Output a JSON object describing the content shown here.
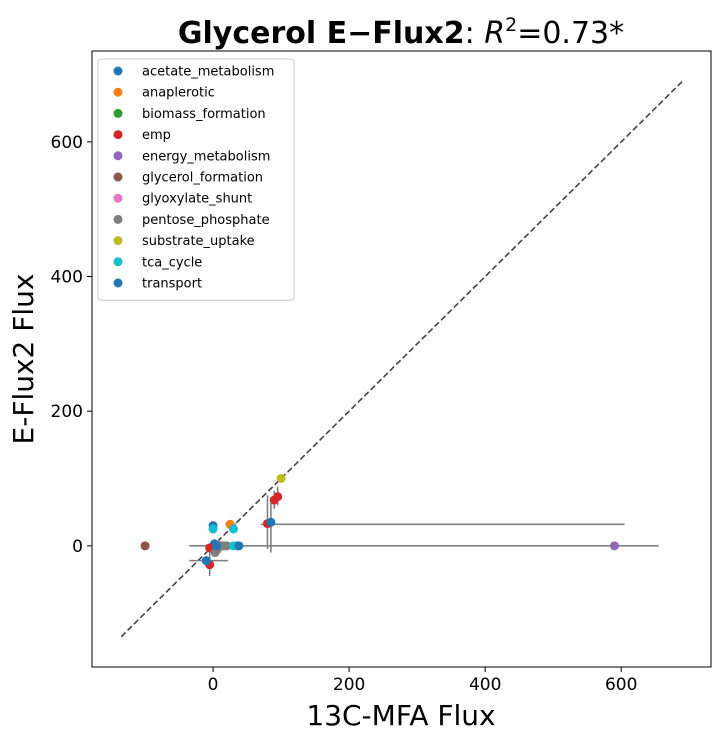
{
  "chart_data": {
    "type": "scatter",
    "title_bold": "Glycerol E−Flux2",
    "title_rest": ": ",
    "title_r": "R",
    "title_sup": "2",
    "title_val": "=0.73*",
    "xlabel": "13C-MFA Flux",
    "ylabel": "E-Flux2 Flux",
    "xlim": [
      -178,
      732
    ],
    "ylim": [
      -180,
      735
    ],
    "xticks": [
      0,
      200,
      400,
      600
    ],
    "yticks": [
      0,
      200,
      400,
      600
    ],
    "grid": false,
    "legend_position": "upper-left",
    "identity_line": {
      "from": -135,
      "to": 690,
      "color": "#444444",
      "style": "dashed"
    },
    "error_bar_color": "#808080",
    "series": [
      {
        "name": "acetate_metabolism",
        "color": "#1f77b4",
        "points": [
          [
            0,
            30
          ],
          [
            2,
            3
          ]
        ]
      },
      {
        "name": "anaplerotic",
        "color": "#ff7f0e",
        "points": [
          [
            25,
            32
          ]
        ]
      },
      {
        "name": "biomass_formation",
        "color": "#2ca02c",
        "points": [
          [
            10,
            0
          ],
          [
            15,
            0
          ],
          [
            20,
            0
          ]
        ]
      },
      {
        "name": "emp",
        "color": "#d62728",
        "points": [
          [
            80,
            33
          ],
          [
            90,
            68
          ],
          [
            95,
            73
          ],
          [
            -5,
            -3
          ],
          [
            -5,
            -28
          ]
        ]
      },
      {
        "name": "energy_metabolism",
        "color": "#9467bd",
        "points": [
          [
            590,
            0
          ]
        ]
      },
      {
        "name": "glycerol_formation",
        "color": "#8c564b",
        "points": [
          [
            -100,
            0
          ]
        ]
      },
      {
        "name": "glyoxylate_shunt",
        "color": "#e377c2",
        "points": [
          [
            8,
            1
          ]
        ]
      },
      {
        "name": "pentose_phosphate",
        "color": "#7f7f7f",
        "points": [
          [
            3,
            -10
          ],
          [
            6,
            -6
          ],
          [
            12,
            0
          ],
          [
            20,
            0
          ]
        ]
      },
      {
        "name": "substrate_uptake",
        "color": "#bcbd22",
        "points": [
          [
            100,
            100
          ]
        ]
      },
      {
        "name": "tca_cycle",
        "color": "#17becf",
        "points": [
          [
            0,
            25
          ],
          [
            30,
            25
          ],
          [
            30,
            0
          ],
          [
            35,
            0
          ]
        ]
      },
      {
        "name": "transport",
        "color": "#1f77b4",
        "points": [
          [
            -10,
            -22
          ],
          [
            85,
            35
          ],
          [
            38,
            0
          ],
          [
            5,
            0
          ]
        ]
      }
    ],
    "error_bars": [
      {
        "x": 85,
        "y": 32,
        "xmin": 70,
        "xmax": 605,
        "ymin": -10,
        "ymax": 72
      },
      {
        "x": 38,
        "y": 0,
        "xmin": -35,
        "xmax": 655
      },
      {
        "x": -5,
        "y": -22,
        "xmin": -35,
        "xmax": 22,
        "ymin": -45,
        "ymax": -5
      },
      {
        "x": 90,
        "y": 68,
        "ymin": 55,
        "ymax": 82
      },
      {
        "x": 95,
        "y": 73,
        "ymin": 60,
        "ymax": 88
      },
      {
        "x": 25,
        "y": 32,
        "xmin": 18,
        "xmax": 34
      },
      {
        "x": 80,
        "y": 33,
        "ymin": -5,
        "ymax": 75
      }
    ]
  }
}
